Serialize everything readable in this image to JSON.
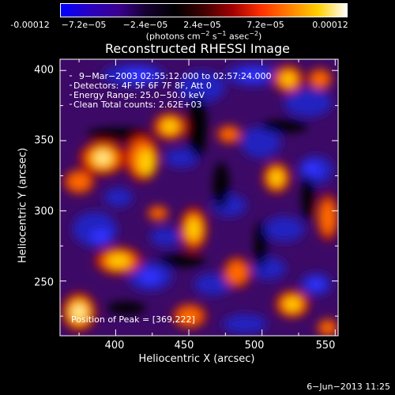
{
  "colorbar": {
    "tick_labels": [
      "-0.00012",
      "−7.2e−05",
      "−2.4e−05",
      "2.4e−05",
      "7.2e−05",
      "0.00012"
    ],
    "units_prefix": "(photons cm",
    "units_exp1": "−2",
    "units_mid": " s",
    "units_exp2": "−1",
    "units_mid2": " asec",
    "units_exp3": "−2",
    "units_suffix": ")",
    "colors": [
      "#0000ff",
      "#2a00c0",
      "#3a0090",
      "#150030",
      "#000000",
      "#400000",
      "#a00000",
      "#ff3000",
      "#ff8000",
      "#ffd000",
      "#ffffff"
    ]
  },
  "chart_data": {
    "type": "heatmap",
    "title": "Reconstructed RHESSI Image",
    "xlabel": "Heliocentric X (arcsec)",
    "ylabel": "Heliocentric Y (arcsec)",
    "xlim": [
      362,
      552
    ],
    "ylim": [
      211,
      408
    ],
    "x_ticks": [
      400,
      450,
      500,
      550
    ],
    "y_ticks": [
      250,
      300,
      350,
      400
    ],
    "colorbar_range": [
      -0.00012,
      0.00012
    ],
    "peak_position": [
      369,
      222
    ]
  },
  "annotations": {
    "time": "9−Mar−2003 02:55:12.000 to 02:57:24.000",
    "detectors": "Detectors: 4F 5F 6F 7F 8F, Att 0",
    "energy": "Energy Range: 25.0−50.0 keV",
    "clean": "Clean     Total counts: 2.62E+03",
    "peak": "Position of Peak = [369,222]"
  },
  "footer": "6−Jun−2013 11:25"
}
